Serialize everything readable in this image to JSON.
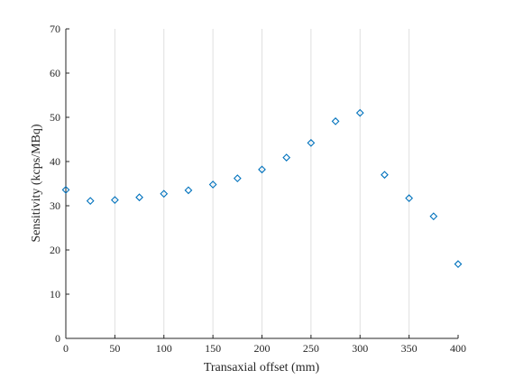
{
  "chart_data": {
    "type": "scatter",
    "xlabel": "Transaxial offset (mm)",
    "ylabel": "Sensitivity (kcps/MBq)",
    "xlim": [
      0,
      400
    ],
    "ylim": [
      0,
      70
    ],
    "xticks": [
      0,
      50,
      100,
      150,
      200,
      250,
      300,
      350,
      400
    ],
    "yticks": [
      0,
      10,
      20,
      30,
      40,
      50,
      60,
      70
    ],
    "grid": "vertical",
    "marker": "diamond",
    "color": "#0072BD",
    "series": [
      {
        "x": [
          0,
          25,
          50,
          75,
          100,
          125,
          150,
          175,
          200,
          225,
          250,
          275,
          300,
          325,
          350,
          375,
          400
        ],
        "y": [
          33.6,
          31.1,
          31.3,
          31.9,
          32.7,
          33.5,
          34.8,
          36.2,
          38.2,
          40.9,
          44.2,
          49.1,
          51.0,
          37.0,
          31.7,
          27.6,
          16.8
        ]
      }
    ]
  }
}
